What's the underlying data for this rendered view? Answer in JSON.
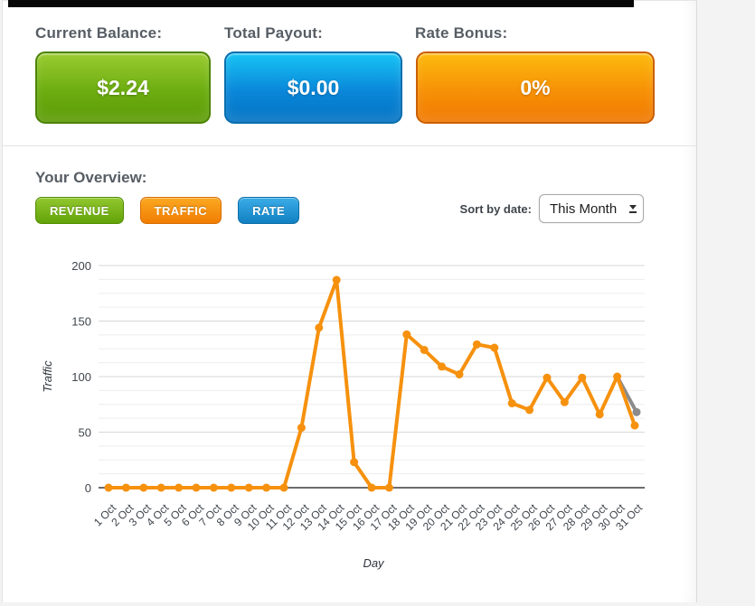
{
  "stats": {
    "items": [
      {
        "label": "Current Balance:",
        "value": "$2.24",
        "color": "#6cad10"
      },
      {
        "label": "Total Payout:",
        "value": "$0.00",
        "color": "#0a87d9"
      },
      {
        "label": "Rate Bonus:",
        "value": "0%",
        "color": "#f79106"
      }
    ]
  },
  "overview": {
    "title": "Your Overview:",
    "tabs": [
      {
        "label": "REVENUE",
        "color": "#62a309"
      },
      {
        "label": "TRAFFIC",
        "color": "#f17d02"
      },
      {
        "label": "RATE",
        "color": "#1180c2"
      }
    ],
    "sort": {
      "label": "Sort by date:",
      "selected": "This Month"
    }
  },
  "chart_data": {
    "type": "line",
    "title": "",
    "xlabel": "Day",
    "ylabel": "Traffic",
    "x_labels": [
      "1 Oct",
      "2 Oct",
      "3 Oct",
      "4 Oct",
      "5 Oct",
      "6 Oct",
      "7 Oct",
      "8 Oct",
      "9 Oct",
      "10 Oct",
      "11 Oct",
      "12 Oct",
      "13 Oct",
      "14 Oct",
      "15 Oct",
      "16 Oct",
      "17 Oct",
      "18 Oct",
      "19 Oct",
      "20 Oct",
      "21 Oct",
      "22 Oct",
      "23 Oct",
      "24 Oct",
      "25 Oct",
      "26 Oct",
      "27 Oct",
      "28 Oct",
      "29 Oct",
      "30 Oct",
      "31 Oct"
    ],
    "series": [
      {
        "name": "Traffic",
        "color": "#F6910E",
        "values": [
          0,
          0,
          0,
          0,
          0,
          0,
          0,
          0,
          0,
          0,
          0,
          54,
          144,
          187,
          23,
          0,
          0,
          138,
          124,
          109,
          102,
          129,
          126,
          76,
          70,
          99,
          77,
          99,
          66,
          100,
          56
        ]
      }
    ],
    "gray_point": {
      "day": 31,
      "value": 68,
      "from_day": 30,
      "from_value": 100,
      "color": "#8B8B8B"
    },
    "yticks": [
      0,
      50,
      100,
      150,
      200
    ],
    "ylim": [
      0,
      200
    ],
    "minor_gridline_step": 12.5,
    "grid": "horizontal-only",
    "legend": "none"
  }
}
